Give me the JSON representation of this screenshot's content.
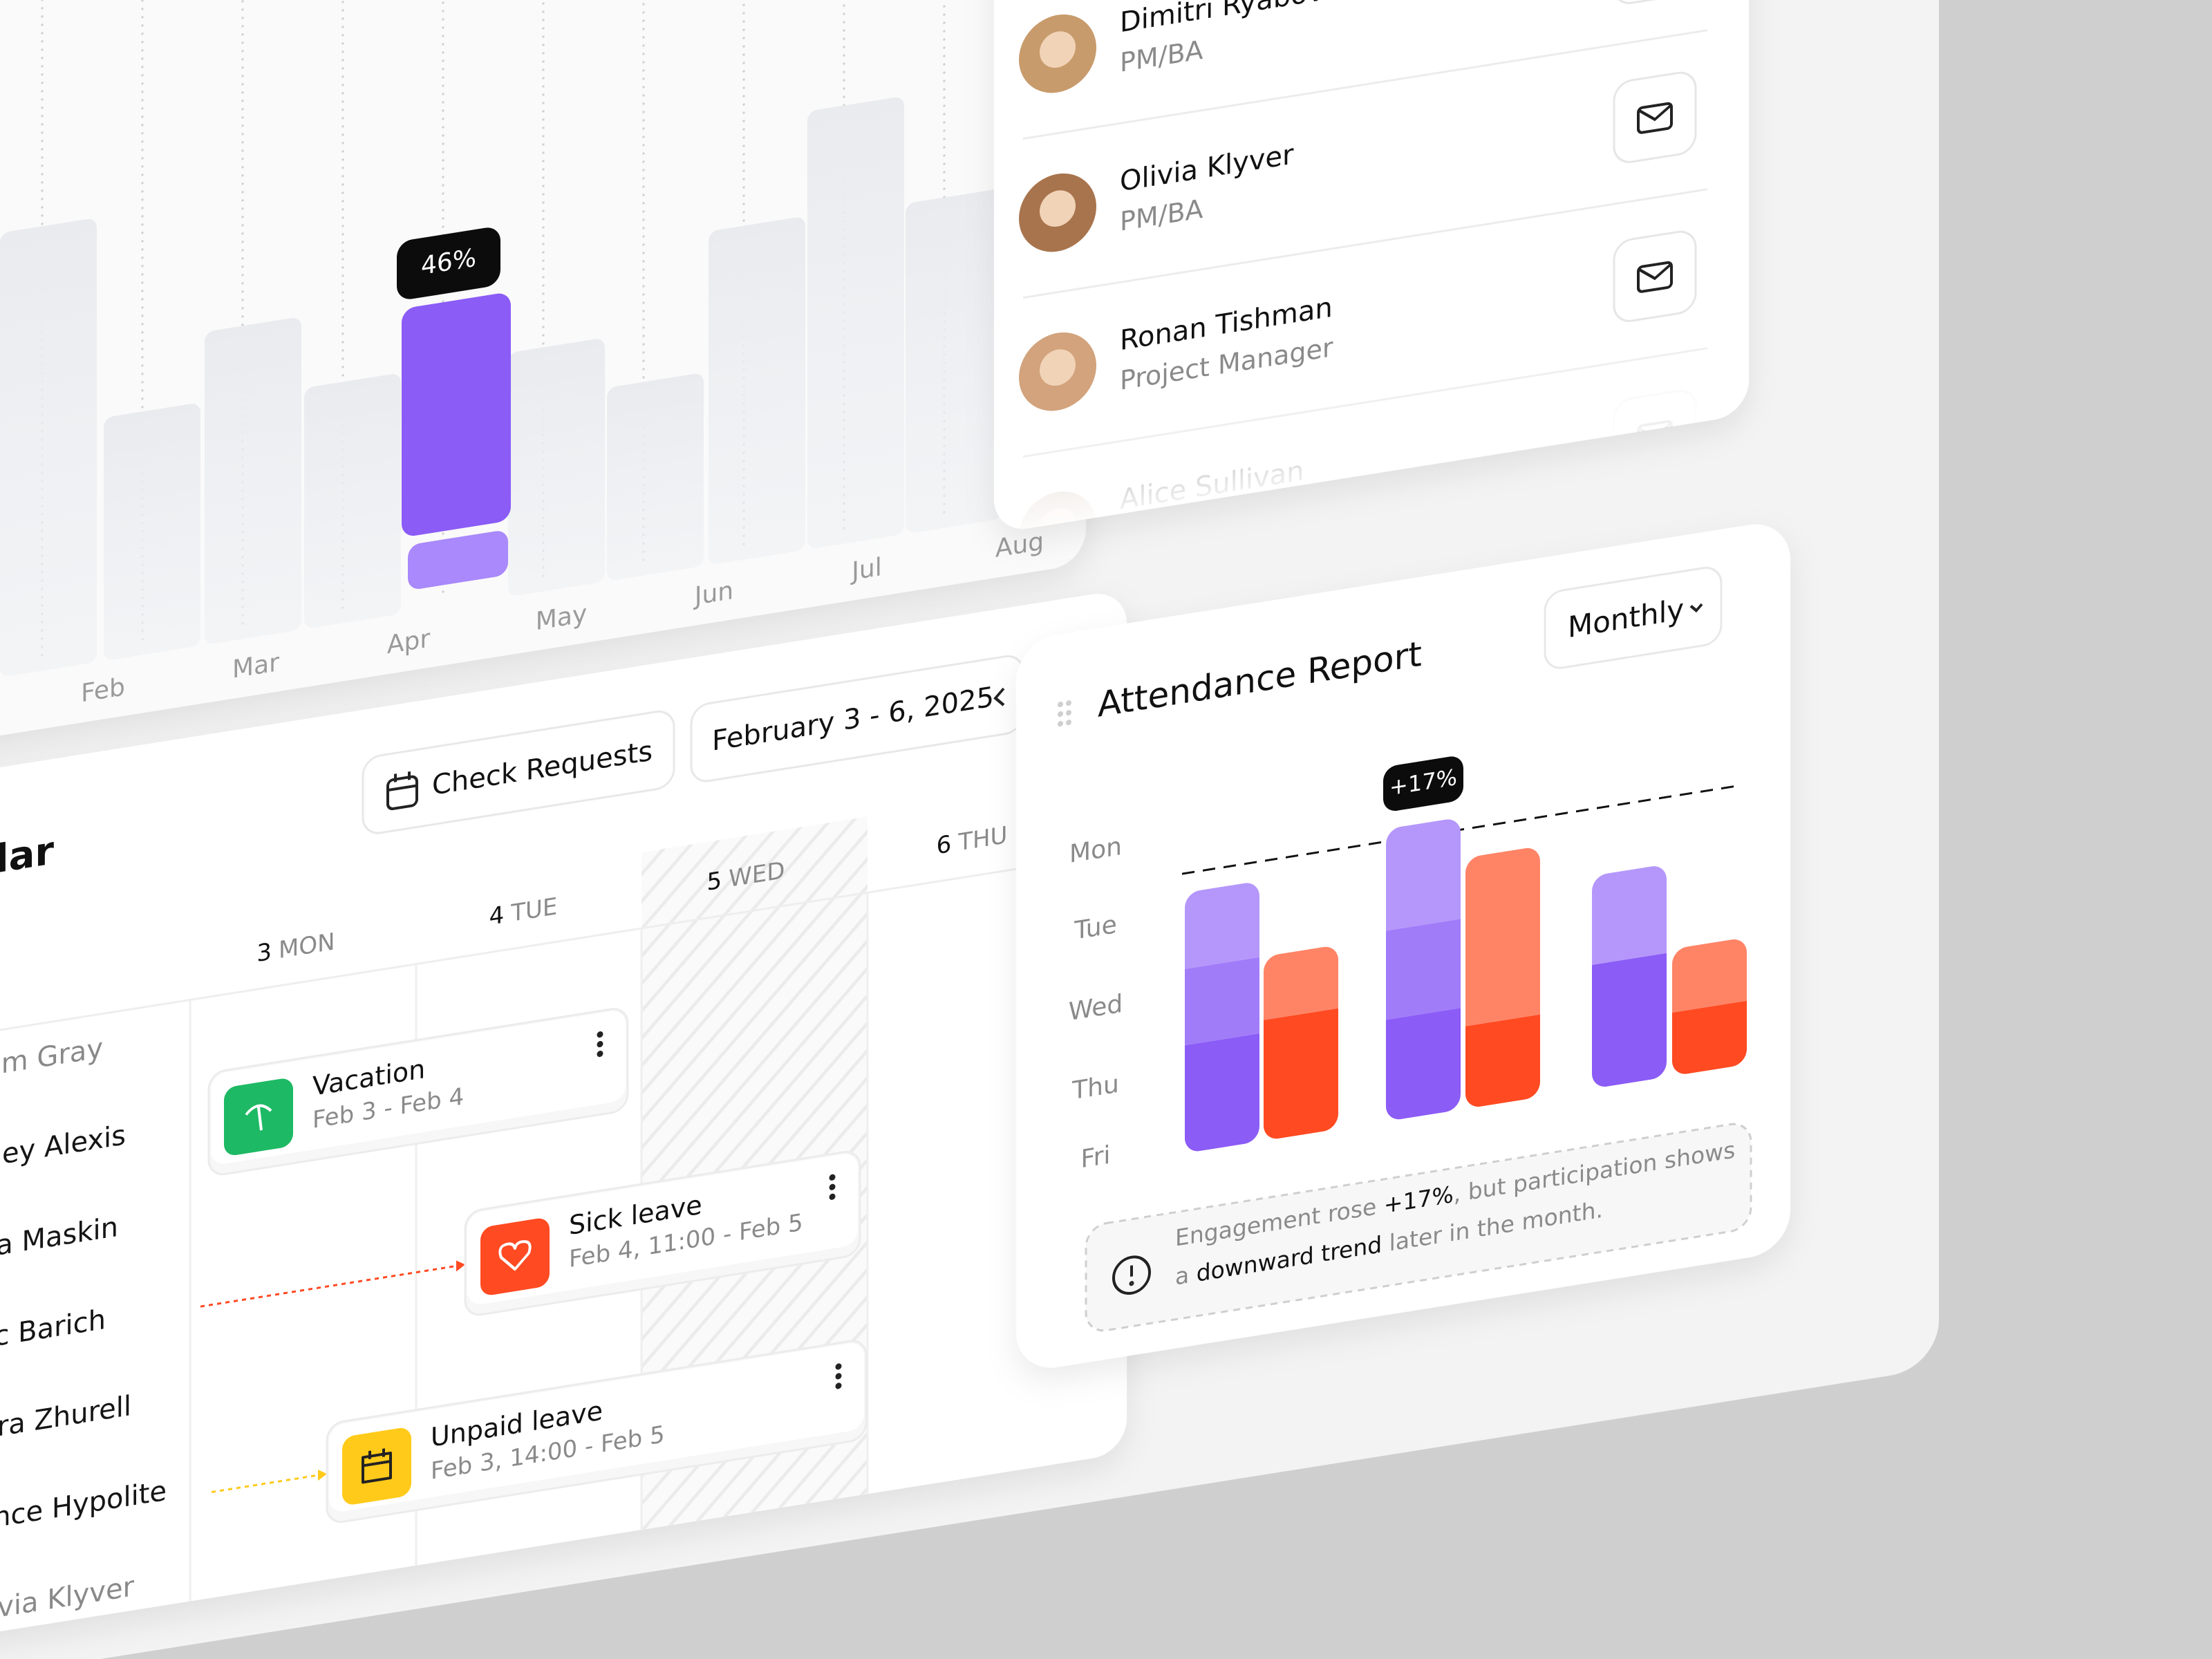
{
  "usage_chart": {
    "months": [
      "Feb",
      "Mar",
      "Apr",
      "May",
      "Jun",
      "Jul",
      "Aug"
    ],
    "highlight": {
      "label": "46%",
      "value": 46
    }
  },
  "team": [
    {
      "name": "Dimitri Ryabov",
      "role": "PM/BA"
    },
    {
      "name": "Olivia Klyver",
      "role": "PM/BA"
    },
    {
      "name": "Ronan Tishman",
      "role": "Project Manager"
    },
    {
      "name": "Alice Sullivan"
    }
  ],
  "calendar": {
    "title": "Calendar",
    "check_requests": "Check Requests",
    "date_range": "February 3 - 6, 2025",
    "days": [
      {
        "num": "3",
        "name": "MON"
      },
      {
        "num": "4",
        "name": "TUE"
      },
      {
        "num": "5",
        "name": "WED"
      },
      {
        "num": "6",
        "name": "THU"
      }
    ],
    "employees": [
      "em Gray",
      "sley Alexis",
      "a Maskin",
      "c Barich",
      "ra Zhurell",
      "ance Hypolite",
      "Olivia Klyver"
    ],
    "events": [
      {
        "title": "Vacation",
        "dates": "Feb 3 - Feb 4",
        "color": "#1db964"
      },
      {
        "title": "Sick leave",
        "dates": "Feb 4, 11:00 - Feb 5",
        "color": "#ff4a22"
      },
      {
        "title": "Unpaid leave",
        "dates": "Feb 3, 14:00 - Feb 5",
        "color": "#ffca1a"
      }
    ]
  },
  "attendance": {
    "title": "Attendance Report",
    "period": "Monthly",
    "weekdays": [
      "Mon",
      "Tue",
      "Wed",
      "Thu",
      "Fri"
    ],
    "highlight": "+17%",
    "colors": {
      "purple": [
        "#8b5cf6",
        "#a17cf9",
        "#b597fb"
      ],
      "orange": [
        "#ff4a22",
        "#ff8466"
      ]
    },
    "groups": [
      {
        "purple": [
          34,
          24,
          24
        ],
        "orange": [
          38,
          20
        ]
      },
      {
        "purple": [
          32,
          28,
          32
        ],
        "orange": [
          26,
          53
        ]
      },
      {
        "purple": [
          39,
          28
        ],
        "orange": [
          20,
          20
        ]
      }
    ],
    "note": {
      "line1": [
        "Engagement rose ",
        "+17%",
        ", but participation shows"
      ],
      "line2": [
        "a ",
        "downward trend",
        " later in the month."
      ]
    }
  }
}
